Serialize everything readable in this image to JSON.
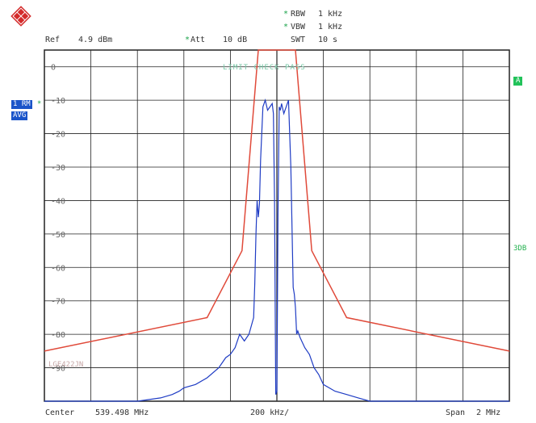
{
  "header": {
    "ref_label": "Ref",
    "ref_value": "4.9 dBm",
    "att_label": "Att",
    "att_value": "10 dB",
    "rbw_label": "RBW",
    "rbw_value": "1 kHz",
    "vbw_label": "VBW",
    "vbw_value": "1 kHz",
    "swt_label": "SWT",
    "swt_value": "10 s",
    "bullet": "*"
  },
  "trace": {
    "trace_label": "1 RM",
    "mode_label": "AVG",
    "trace_marker": "*"
  },
  "right_labels": {
    "a_label": "A",
    "db_label": "3DB"
  },
  "overlay": {
    "limit_check": "LIMIT CHECK  PASS",
    "limit_line_name": "LGE422JN"
  },
  "footer": {
    "center_label": "Center",
    "center_value": "539.498 MHz",
    "div_value": "200 kHz/",
    "span_label": "Span",
    "span_value": "2 MHz"
  },
  "chart_data": {
    "type": "line",
    "ylim": [
      -100,
      0
    ],
    "y_ticks": [
      "0",
      "-10",
      "-20",
      "-30",
      "-40",
      "-50",
      "-60",
      "-70",
      "-80",
      "-90"
    ],
    "x_divisions": 10,
    "grid": true,
    "colors": {
      "trace": "#1f3cc4",
      "limit": "#e04a3a",
      "grid": "#222222"
    },
    "series": [
      {
        "role": "limit-line",
        "x": [
          -1.0,
          -0.3,
          -0.15,
          -0.08,
          0.08,
          0.15,
          0.3,
          1.0
        ],
        "y": [
          -85,
          -75,
          -55,
          5,
          5,
          -55,
          -75,
          -85
        ]
      },
      {
        "role": "trace",
        "x": [
          -1.0,
          -0.6,
          -0.5,
          -0.45,
          -0.42,
          -0.4,
          -0.35,
          -0.3,
          -0.25,
          -0.22,
          -0.2,
          -0.18,
          -0.16,
          -0.14,
          -0.12,
          -0.1,
          -0.095,
          -0.09,
          -0.085,
          -0.08,
          -0.075,
          -0.07,
          -0.06,
          -0.05,
          -0.04,
          -0.03,
          -0.02,
          -0.015,
          -0.01,
          -0.005,
          0.0,
          0.005,
          0.01,
          0.015,
          0.02,
          0.03,
          0.04,
          0.05,
          0.06,
          0.07,
          0.075,
          0.08,
          0.085,
          0.09,
          0.1,
          0.12,
          0.14,
          0.16,
          0.18,
          0.2,
          0.25,
          0.3,
          0.35,
          0.4,
          0.5,
          1.0
        ],
        "y": [
          -100,
          -100,
          -99,
          -98,
          -97,
          -96,
          -95,
          -93,
          -90,
          -87,
          -86,
          -84,
          -80,
          -82,
          -80,
          -75,
          -65,
          -50,
          -40,
          -45,
          -41,
          -28,
          -12,
          -10,
          -13,
          -12,
          -11,
          -14,
          -40,
          -98,
          -97,
          -44,
          -12,
          -13,
          -11,
          -14,
          -12,
          -10,
          -30,
          -66,
          -68,
          -72,
          -80,
          -79,
          -81,
          -84,
          -86,
          -90,
          -92,
          -95,
          -97,
          -98,
          -99,
          -100,
          -100,
          -100
        ]
      }
    ]
  }
}
